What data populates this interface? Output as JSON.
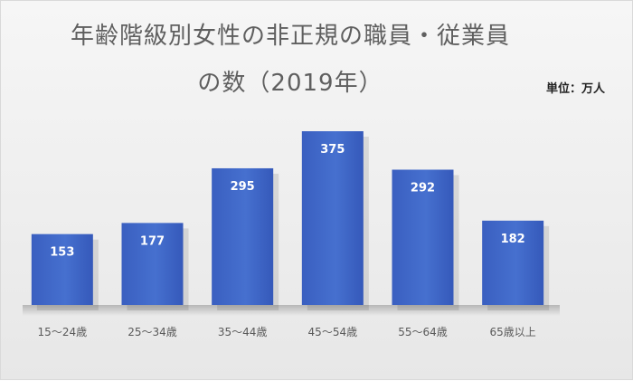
{
  "chart_data": {
    "type": "bar",
    "title_line1": "年齢階級別女性の非正規の職員・従業員",
    "title_line2": "の数（2019年）",
    "unit_label": "単位：万人",
    "categories": [
      "15～24歳",
      "25～34歳",
      "35～44歳",
      "45～54歳",
      "55～64歳",
      "65歳以上"
    ],
    "values": [
      153,
      177,
      295,
      375,
      292,
      182
    ],
    "ylim": [
      0,
      375
    ],
    "grid": false,
    "bar_color": "#3f66c5",
    "bar_color_dark": "#2f56b8"
  }
}
